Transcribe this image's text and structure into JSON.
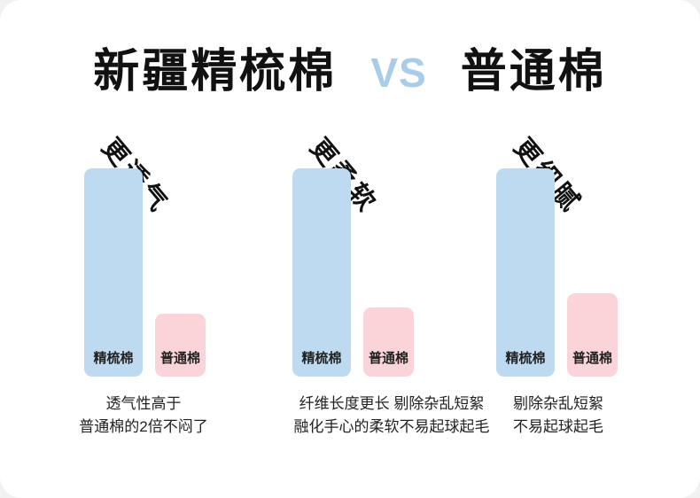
{
  "title": {
    "left": "新疆精梳棉",
    "vs": "VS",
    "right": "普通棉"
  },
  "colors": {
    "combed_bar": "#bedaf1",
    "ordinary_bar": "#fad4d8",
    "vs_text": "#a9cde9",
    "text": "#111111"
  },
  "chart_data": [
    {
      "type": "bar",
      "title": "更透气",
      "categories": [
        "精梳棉",
        "普通棉"
      ],
      "values": [
        100,
        30
      ],
      "ylim": [
        0,
        100
      ],
      "caption_line1": "透气性高于",
      "caption_line2": "普通棉的2倍不闷了"
    },
    {
      "type": "bar",
      "title": "更柔软",
      "categories": [
        "精梳棉",
        "普通棉"
      ],
      "values": [
        100,
        33
      ],
      "ylim": [
        0,
        100
      ],
      "caption_line1": "纤维长度更长 剔除杂乱短絮",
      "caption_line2": "融化手心的柔软不易起球起毛"
    },
    {
      "type": "bar",
      "title": "更细腻",
      "categories": [
        "精梳棉",
        "普通棉"
      ],
      "values": [
        100,
        40
      ],
      "ylim": [
        0,
        100
      ],
      "caption_line1": "剔除杂乱短絮",
      "caption_line2": "不易起球起毛"
    }
  ]
}
